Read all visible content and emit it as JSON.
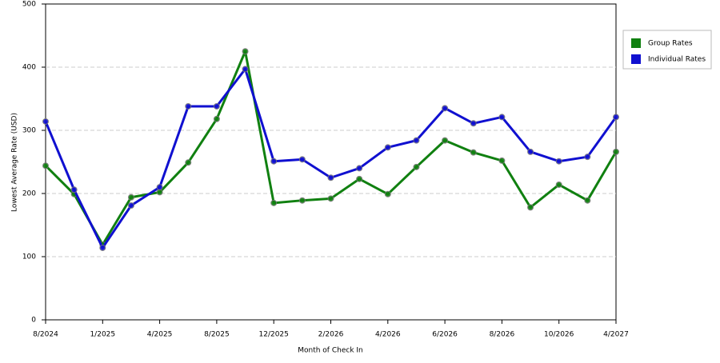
{
  "chart_data": {
    "type": "line",
    "x_label": "Month of Check In",
    "y_label": "Lowest Average Rate (USD)",
    "categories": [
      "8/2024",
      null,
      "1/2025",
      null,
      "4/2025",
      null,
      "8/2025",
      null,
      "12/2025",
      null,
      "2/2026",
      null,
      "4/2026",
      null,
      "6/2026",
      null,
      "8/2026",
      null,
      "10/2026",
      null,
      "4/2027"
    ],
    "series": [
      {
        "name": "Group Rates",
        "color": "#108010",
        "values": [
          244,
          199,
          119,
          194,
          202,
          249,
          318,
          425,
          185,
          189,
          192,
          223,
          199,
          242,
          284,
          265,
          252,
          178,
          214,
          189,
          266
        ]
      },
      {
        "name": "Individual Rates",
        "color": "#1010d0",
        "values": [
          314,
          206,
          114,
          181,
          210,
          338,
          338,
          397,
          251,
          254,
          225,
          240,
          273,
          284,
          335,
          311,
          321,
          266,
          251,
          258,
          321
        ]
      }
    ],
    "ylim": [
      0,
      500
    ],
    "yticks": [
      0,
      100,
      200,
      300,
      400,
      500
    ],
    "grid": true,
    "legend": "right"
  }
}
